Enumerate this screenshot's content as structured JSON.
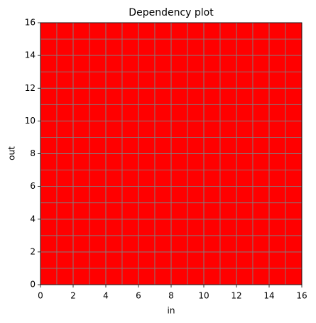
{
  "chart_data": {
    "type": "heatmap",
    "title": "Dependency plot",
    "x_label": "in",
    "y_label": "out",
    "values": [
      [
        1,
        1,
        1,
        1,
        1,
        1,
        1,
        1,
        1,
        1,
        1,
        1,
        1,
        1,
        1,
        1
      ],
      [
        1,
        1,
        1,
        1,
        1,
        1,
        1,
        1,
        1,
        1,
        1,
        1,
        1,
        1,
        1,
        1
      ],
      [
        1,
        1,
        1,
        1,
        1,
        1,
        1,
        1,
        1,
        1,
        1,
        1,
        1,
        1,
        1,
        1
      ],
      [
        1,
        1,
        1,
        1,
        1,
        1,
        1,
        1,
        1,
        1,
        1,
        1,
        1,
        1,
        1,
        1
      ],
      [
        1,
        1,
        1,
        1,
        1,
        1,
        1,
        1,
        1,
        1,
        1,
        1,
        1,
        1,
        1,
        1
      ],
      [
        1,
        1,
        1,
        1,
        1,
        1,
        1,
        1,
        1,
        1,
        1,
        1,
        1,
        1,
        1,
        1
      ],
      [
        1,
        1,
        1,
        1,
        1,
        1,
        1,
        1,
        1,
        1,
        1,
        1,
        1,
        1,
        1,
        1
      ],
      [
        1,
        1,
        1,
        1,
        1,
        1,
        1,
        1,
        1,
        1,
        1,
        1,
        1,
        1,
        1,
        1
      ],
      [
        1,
        1,
        1,
        1,
        1,
        1,
        1,
        1,
        1,
        1,
        1,
        1,
        1,
        1,
        1,
        1
      ],
      [
        1,
        1,
        1,
        1,
        1,
        1,
        1,
        1,
        1,
        1,
        1,
        1,
        1,
        1,
        1,
        1
      ],
      [
        1,
        1,
        1,
        1,
        1,
        1,
        1,
        1,
        1,
        1,
        1,
        1,
        1,
        1,
        1,
        1
      ],
      [
        1,
        1,
        1,
        1,
        1,
        1,
        1,
        1,
        1,
        1,
        1,
        1,
        1,
        1,
        1,
        1
      ],
      [
        1,
        1,
        1,
        1,
        1,
        1,
        1,
        1,
        1,
        1,
        1,
        1,
        1,
        1,
        1,
        1
      ],
      [
        1,
        1,
        1,
        1,
        1,
        1,
        1,
        1,
        1,
        1,
        1,
        1,
        1,
        1,
        1,
        1
      ],
      [
        1,
        1,
        1,
        1,
        1,
        1,
        1,
        1,
        1,
        1,
        1,
        1,
        1,
        1,
        1,
        1
      ],
      [
        1,
        1,
        1,
        1,
        1,
        1,
        1,
        1,
        1,
        1,
        1,
        1,
        1,
        1,
        1,
        1
      ]
    ],
    "color": "#ff0000",
    "grid_color": "#808080",
    "xlim": [
      0,
      16
    ],
    "ylim": [
      0,
      16
    ],
    "xticks": [
      0,
      2,
      4,
      6,
      8,
      10,
      12,
      14,
      16
    ],
    "yticks": [
      0,
      2,
      4,
      6,
      8,
      10,
      12,
      14,
      16
    ],
    "grid": true
  }
}
